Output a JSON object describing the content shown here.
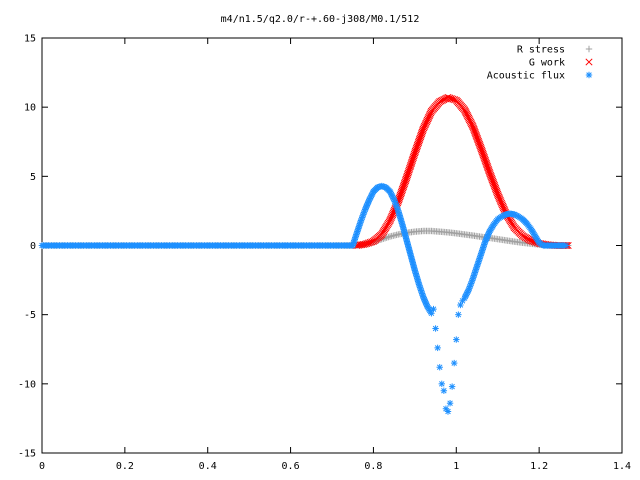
{
  "chart_data": {
    "type": "scatter",
    "title": "m4/n1.5/q2.0/r-+.60-j308/M0.1/512",
    "xlabel": "",
    "ylabel": "",
    "xlim": [
      0,
      1.4
    ],
    "ylim": [
      -15,
      15
    ],
    "xticks": [
      "0",
      "0.2",
      "0.4",
      "0.6",
      "0.8",
      "1",
      "1.2",
      "1.4"
    ],
    "yticks": [
      "-15",
      "-10",
      "-5",
      "0",
      "5",
      "10",
      "15"
    ],
    "xtick_values": [
      0,
      0.2,
      0.4,
      0.6,
      0.8,
      1.0,
      1.2,
      1.4
    ],
    "ytick_values": [
      -15,
      -10,
      -5,
      0,
      5,
      10,
      15
    ],
    "grid": false,
    "legend_position": "top-right",
    "series": [
      {
        "name": "R stress",
        "marker": "plus",
        "color": "#a0a0a0",
        "x": [
          0.0,
          0.1,
          0.2,
          0.3,
          0.4,
          0.5,
          0.6,
          0.7,
          0.76,
          0.78,
          0.8,
          0.82,
          0.84,
          0.86,
          0.88,
          0.9,
          0.92,
          0.94,
          0.96,
          0.98,
          1.0,
          1.02,
          1.04,
          1.06,
          1.08,
          1.1,
          1.12,
          1.14,
          1.16,
          1.18,
          1.2,
          1.22,
          1.24,
          1.26,
          1.27
        ],
        "y": [
          0,
          0,
          0,
          0,
          0,
          0,
          0,
          0,
          0.0,
          0.1,
          0.25,
          0.45,
          0.65,
          0.8,
          0.92,
          1.0,
          1.05,
          1.05,
          1.0,
          0.95,
          0.88,
          0.8,
          0.72,
          0.63,
          0.55,
          0.46,
          0.37,
          0.28,
          0.2,
          0.13,
          0.07,
          0.02,
          0.0,
          -0.02,
          0.0
        ]
      },
      {
        "name": "G work",
        "marker": "cross",
        "color": "#ff0000",
        "x": [
          0.76,
          0.78,
          0.8,
          0.82,
          0.84,
          0.86,
          0.88,
          0.9,
          0.92,
          0.94,
          0.96,
          0.98,
          1.0,
          1.02,
          1.04,
          1.06,
          1.08,
          1.1,
          1.12,
          1.14,
          1.16,
          1.18,
          1.2,
          1.22,
          1.24,
          1.26,
          1.27
        ],
        "y": [
          0.0,
          0.1,
          0.3,
          0.8,
          1.8,
          3.2,
          4.9,
          6.7,
          8.4,
          9.7,
          10.4,
          10.7,
          10.5,
          9.8,
          8.6,
          7.0,
          5.3,
          3.7,
          2.3,
          1.3,
          0.7,
          0.35,
          0.15,
          0.05,
          0.0,
          0.0,
          0.0
        ]
      },
      {
        "name": "Acoustic flux",
        "marker": "star",
        "color": "#1e90ff",
        "x": [
          0.0,
          0.1,
          0.2,
          0.3,
          0.4,
          0.5,
          0.6,
          0.7,
          0.75,
          0.76,
          0.77,
          0.78,
          0.79,
          0.8,
          0.81,
          0.82,
          0.83,
          0.84,
          0.85,
          0.86,
          0.87,
          0.88,
          0.89,
          0.9,
          0.91,
          0.92,
          0.93,
          0.94,
          0.945,
          0.95,
          0.955,
          0.96,
          0.965,
          0.97,
          0.975,
          0.98,
          0.985,
          0.99,
          0.995,
          1.0,
          1.005,
          1.01,
          1.015,
          1.02,
          1.03,
          1.04,
          1.05,
          1.06,
          1.07,
          1.08,
          1.09,
          1.1,
          1.11,
          1.12,
          1.13,
          1.14,
          1.15,
          1.16,
          1.17,
          1.18,
          1.19,
          1.2,
          1.21,
          1.22,
          1.23,
          1.24,
          1.25,
          1.26,
          1.265
        ],
        "y": [
          0,
          0,
          0,
          0,
          0,
          0,
          0,
          0,
          0.0,
          0.9,
          1.8,
          2.6,
          3.3,
          3.9,
          4.2,
          4.3,
          4.2,
          3.9,
          3.3,
          2.5,
          1.5,
          0.4,
          -0.7,
          -1.8,
          -2.8,
          -3.7,
          -4.4,
          -4.9,
          -4.6,
          -6.0,
          -7.4,
          -8.8,
          -10.0,
          -10.5,
          -11.8,
          -12.0,
          -11.4,
          -10.2,
          -8.5,
          -6.8,
          -5.0,
          -4.3,
          -4.0,
          -3.8,
          -3.2,
          -2.4,
          -1.5,
          -0.6,
          0.3,
          1.0,
          1.5,
          1.9,
          2.1,
          2.25,
          2.3,
          2.25,
          2.1,
          1.9,
          1.6,
          1.2,
          0.7,
          0.2,
          0.0,
          0.0,
          0.0,
          0.0,
          0.0,
          0.0,
          0.0
        ]
      }
    ]
  }
}
